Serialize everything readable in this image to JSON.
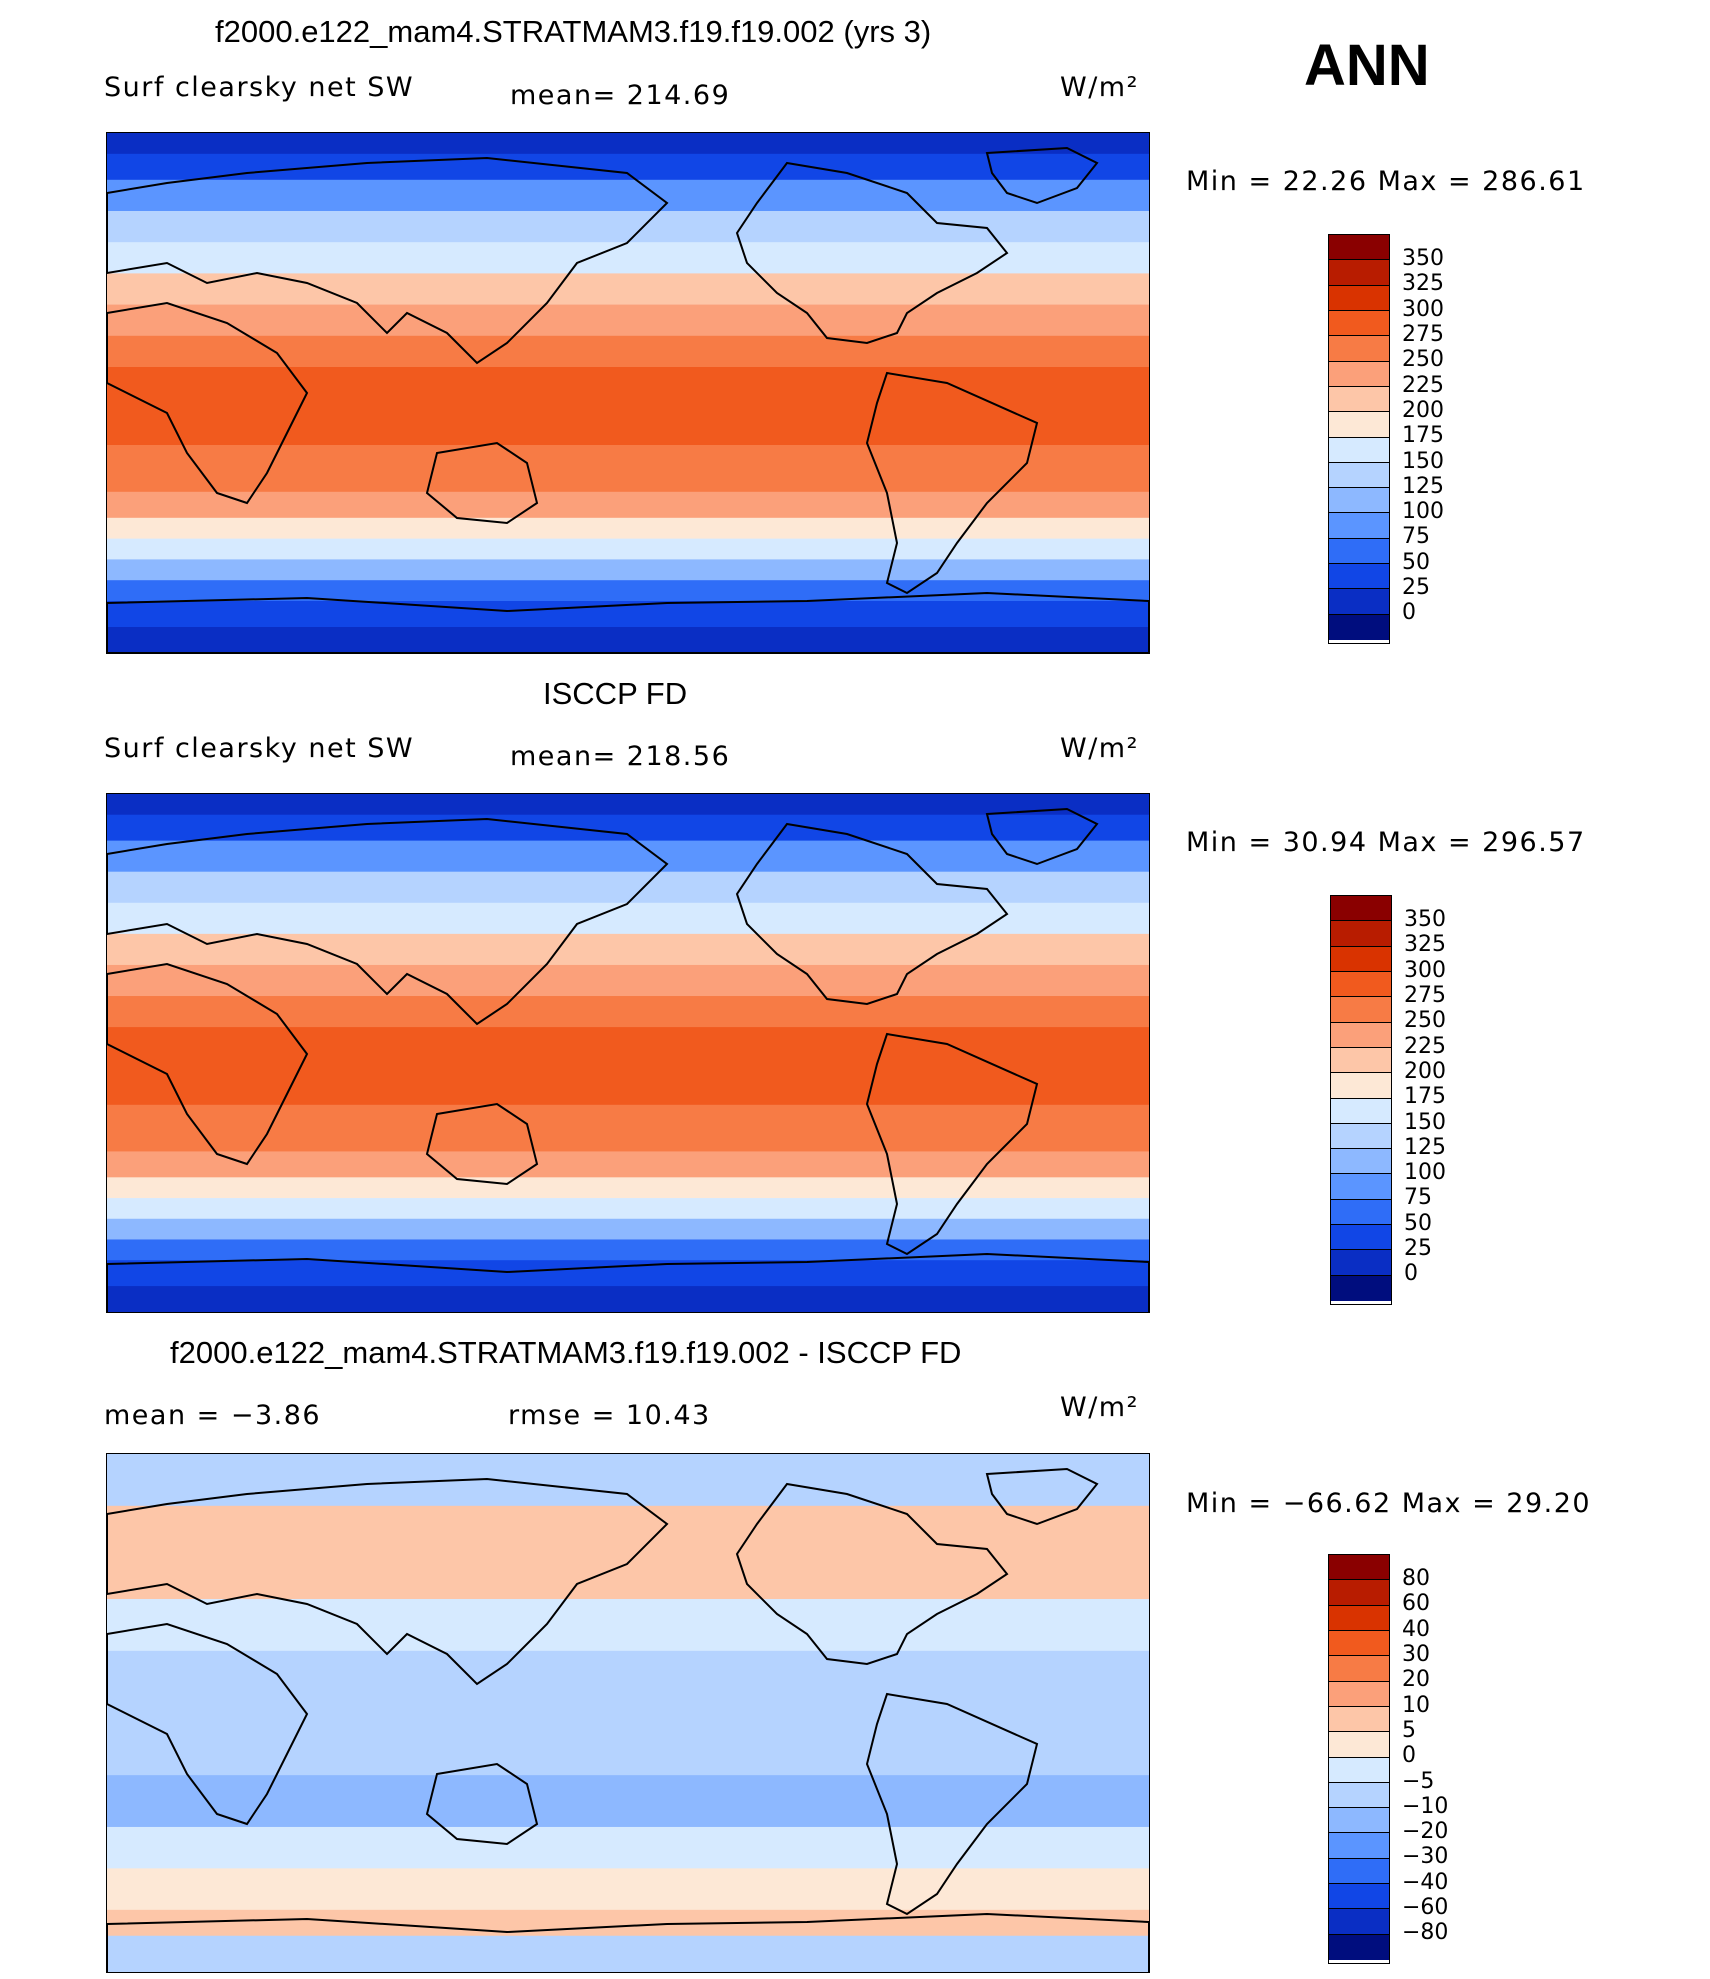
{
  "season": "ANN",
  "units": "W/m²",
  "panels": [
    {
      "title": "f2000.e122_mam4.STRATMAM3.f19.f19.002 (yrs 3)",
      "left_label": "Surf clearsky net SW",
      "stat_label": "mean= 214.69",
      "minmax": "Min =   22.26 Max = 286.61",
      "kind": "absolute"
    },
    {
      "title": "ISCCP FD",
      "left_label": "Surf clearsky net SW",
      "stat_label": "mean= 218.56",
      "minmax": "Min =   30.94 Max = 296.57",
      "kind": "absolute"
    },
    {
      "title": "f2000.e122_mam4.STRATMAM3.f19.f19.002 - ISCCP FD",
      "left_label": "mean =   −3.86",
      "stat_label": "rmse =   10.43",
      "minmax": "Min = −66.62 Max =   29.20",
      "kind": "difference"
    }
  ],
  "colorbars": {
    "absolute": {
      "labels": [
        "350",
        "325",
        "300",
        "275",
        "250",
        "225",
        "200",
        "175",
        "150",
        "125",
        "100",
        "75",
        "50",
        "25",
        "0"
      ],
      "colors": [
        "#8a0000",
        "#b81c00",
        "#d93300",
        "#f15a1e",
        "#f77b45",
        "#fba07a",
        "#fdc6a8",
        "#fde8d6",
        "#d6eaff",
        "#b5d3ff",
        "#8db8ff",
        "#5b95ff",
        "#2f6df7",
        "#1146e6",
        "#0a2ec4",
        "#000d7e"
      ]
    },
    "difference": {
      "labels": [
        "80",
        "60",
        "40",
        "30",
        "20",
        "10",
        "5",
        "0",
        "−5",
        "−10",
        "−20",
        "−30",
        "−40",
        "−60",
        "−80"
      ],
      "colors": [
        "#8a0000",
        "#b81c00",
        "#d93300",
        "#f15a1e",
        "#f77b45",
        "#fba07a",
        "#fdc6a8",
        "#fde8d6",
        "#d6eaff",
        "#b5d3ff",
        "#8db8ff",
        "#5b95ff",
        "#2f6df7",
        "#1146e6",
        "#0a2ec4",
        "#000d7e"
      ]
    }
  }
}
